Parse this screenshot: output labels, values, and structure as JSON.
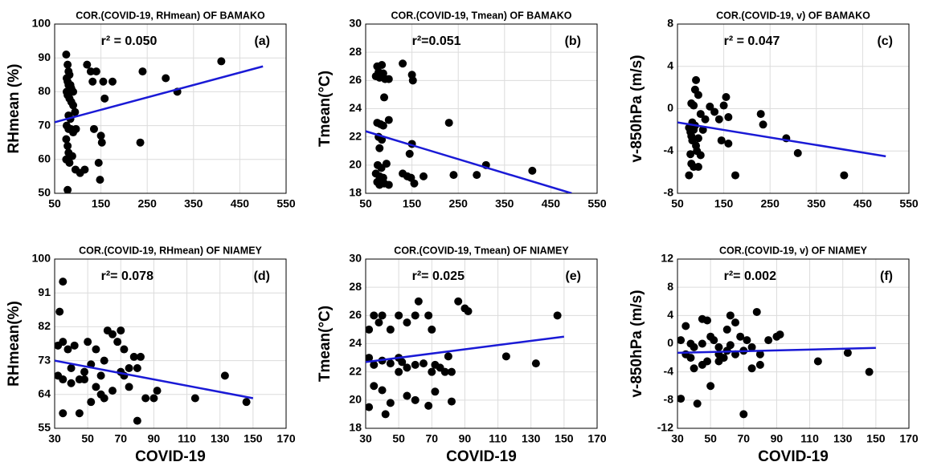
{
  "chart_data": [
    {
      "type": "scatter",
      "title": "COR.(COVID-19, RHmean) OF BAMAKO",
      "annotation": "r² = 0.050",
      "panel_label": "(a)",
      "y_label": "RHmean (%)",
      "x": [
        75,
        78,
        80,
        82,
        76,
        78,
        80,
        84,
        86,
        90,
        76,
        78,
        82,
        86,
        90,
        94,
        80,
        84,
        76,
        80,
        85,
        90,
        96,
        75,
        78,
        80,
        88,
        75,
        82,
        95,
        78,
        105,
        115,
        120,
        128,
        132,
        135,
        140,
        145,
        148,
        150,
        152,
        155,
        158,
        175,
        235,
        240,
        290,
        315,
        410
      ],
      "values": [
        91,
        88,
        86,
        85,
        84,
        83,
        82,
        82,
        81,
        80,
        80,
        79,
        78,
        77,
        76,
        74,
        73,
        72,
        70,
        69,
        69,
        68,
        69,
        66,
        64,
        62,
        61,
        60,
        59,
        57,
        51,
        56,
        57,
        88,
        86,
        83,
        69,
        86,
        59,
        54,
        67,
        65,
        83,
        78,
        83,
        65,
        86,
        84,
        80,
        89
      ],
      "fit_x": [
        50,
        500
      ],
      "fit_y": [
        71,
        87.5
      ],
      "point_color": "#000000",
      "line_color": "#1a1ad6",
      "xlim": [
        50,
        550
      ],
      "xticks": [
        50,
        150,
        250,
        350,
        450,
        550
      ],
      "ylim": [
        50,
        100
      ],
      "yticks": [
        50,
        60,
        70,
        80,
        90,
        100
      ],
      "grid": true
    },
    {
      "type": "scatter",
      "title": "COR.(COVID-19, Tmean) OF BAMAKO",
      "annotation": "r²=0.051",
      "panel_label": "(b)",
      "y_label": "Tmean(°C)",
      "x": [
        72,
        75,
        78,
        80,
        85,
        88,
        92,
        100,
        130,
        150,
        152,
        90,
        75,
        82,
        88,
        100,
        78,
        85,
        80,
        76,
        84,
        95,
        72,
        80,
        88,
        75,
        80,
        90,
        100,
        130,
        140,
        145,
        150,
        148,
        155,
        175,
        230,
        240,
        290,
        310,
        410
      ],
      "values": [
        26.3,
        27,
        26.6,
        26.2,
        27.1,
        26.5,
        26.1,
        26.1,
        27.2,
        26.4,
        26,
        24.8,
        23,
        22.9,
        22.8,
        23.2,
        22,
        21.8,
        21.2,
        20,
        19.8,
        20.1,
        19.4,
        19.2,
        19.1,
        18.8,
        18.6,
        18.7,
        18.6,
        19.4,
        19.2,
        20.8,
        21.5,
        19.1,
        18.7,
        19.2,
        23,
        19.3,
        19.3,
        20,
        19.6
      ],
      "fit_x": [
        50,
        495
      ],
      "fit_y": [
        22.4,
        18
      ],
      "point_color": "#000000",
      "line_color": "#1a1ad6",
      "xlim": [
        50,
        550
      ],
      "xticks": [
        50,
        150,
        250,
        350,
        450,
        550
      ],
      "ylim": [
        18,
        30
      ],
      "yticks": [
        18,
        20,
        22,
        24,
        26,
        28,
        30
      ],
      "grid": true
    },
    {
      "type": "scatter",
      "title": "COR.(COVID-19, v) OF BAMAKO",
      "annotation": "r² = 0.047",
      "panel_label": "(c)",
      "y_label": "v-850hPa (m/s)",
      "x": [
        75,
        78,
        80,
        82,
        85,
        88,
        90,
        92,
        78,
        80,
        75,
        85,
        95,
        80,
        85,
        88,
        90,
        95,
        100,
        105,
        110,
        120,
        130,
        140,
        150,
        155,
        160,
        145,
        160,
        175,
        230,
        235,
        285,
        310,
        410,
        100,
        95,
        82
      ],
      "values": [
        -1.8,
        -2.2,
        -2.6,
        -3,
        -2,
        -1.6,
        -3.5,
        -4,
        -4.3,
        -5.2,
        -6.3,
        -5.5,
        -5.5,
        0.5,
        0.3,
        1.8,
        2.7,
        1.3,
        -0.5,
        -2,
        -1,
        0.2,
        -0.3,
        -1,
        0.3,
        1.1,
        -0.8,
        -3,
        -3.3,
        -6.3,
        -0.5,
        -1.5,
        -2.8,
        -4.2,
        -6.3,
        -4.4,
        -2.8,
        -1.3
      ],
      "fit_x": [
        50,
        500
      ],
      "fit_y": [
        -1.3,
        -4.5
      ],
      "point_color": "#000000",
      "line_color": "#1a1ad6",
      "xlim": [
        50,
        550
      ],
      "xticks": [
        50,
        150,
        250,
        350,
        450,
        550
      ],
      "ylim": [
        -8,
        8
      ],
      "yticks": [
        -8,
        -4,
        0,
        4,
        8
      ],
      "grid": true
    },
    {
      "type": "scatter",
      "title": "COR.(COVID-19, RHmean) OF NIAMEY",
      "annotation": "r²= 0.078",
      "panel_label": "(d)",
      "y_label": "RHmean(%)",
      "x_label": "COVID-19",
      "x": [
        33,
        35,
        32,
        35,
        38,
        32,
        35,
        40,
        42,
        45,
        48,
        50,
        52,
        55,
        58,
        60,
        62,
        65,
        68,
        70,
        72,
        75,
        78,
        80,
        82,
        35,
        45,
        52,
        55,
        58,
        60,
        65,
        70,
        72,
        75,
        80,
        85,
        90,
        92,
        115,
        133,
        146,
        40,
        48
      ],
      "values": [
        86,
        94,
        77,
        78,
        76,
        69,
        68,
        71,
        77,
        68,
        70,
        78,
        72,
        76,
        69,
        73,
        81,
        80,
        78,
        81,
        76,
        71,
        74,
        71,
        74,
        59,
        59,
        62,
        66,
        64,
        63,
        65,
        70,
        69,
        66,
        57,
        63,
        63,
        65,
        63,
        69,
        62,
        67,
        68
      ],
      "fit_x": [
        30,
        150
      ],
      "fit_y": [
        73,
        63
      ],
      "point_color": "#000000",
      "line_color": "#1a1ad6",
      "xlim": [
        30,
        170
      ],
      "xticks": [
        30,
        50,
        70,
        90,
        110,
        130,
        150,
        170
      ],
      "ylim": [
        55,
        100
      ],
      "yticks": [
        55,
        64,
        73,
        82,
        91,
        100
      ],
      "grid": true
    },
    {
      "type": "scatter",
      "title": "COR.(COVID-19, Tmean) OF NIAMEY",
      "annotation": "r²= 0.025",
      "panel_label": "(e)",
      "y_label": "Tmean(°C)",
      "x_label": "COVID-19",
      "x": [
        32,
        35,
        38,
        40,
        45,
        50,
        55,
        60,
        62,
        68,
        70,
        78,
        82,
        86,
        90,
        92,
        32,
        35,
        40,
        45,
        50,
        52,
        55,
        60,
        65,
        70,
        72,
        75,
        80,
        35,
        40,
        45,
        50,
        55,
        60,
        68,
        72,
        82,
        32,
        42,
        115,
        133,
        146
      ],
      "values": [
        25,
        26,
        25.5,
        26,
        25,
        26,
        25.5,
        26,
        27,
        26,
        25,
        22,
        22,
        27,
        26.5,
        26.3,
        23,
        22.5,
        22.8,
        22.6,
        23,
        22.7,
        22.3,
        22.5,
        22.6,
        22,
        22.5,
        22.3,
        23.1,
        21,
        20.7,
        19.8,
        22,
        20.3,
        20,
        19.6,
        20.6,
        19.9,
        19.5,
        19,
        23.1,
        22.6,
        26
      ],
      "fit_x": [
        30,
        150
      ],
      "fit_y": [
        22.7,
        24.5
      ],
      "point_color": "#000000",
      "line_color": "#1a1ad6",
      "xlim": [
        30,
        170
      ],
      "xticks": [
        30,
        50,
        70,
        90,
        110,
        130,
        150,
        170
      ],
      "ylim": [
        18,
        30
      ],
      "yticks": [
        18,
        20,
        22,
        24,
        26,
        28,
        30
      ],
      "grid": true
    },
    {
      "type": "scatter",
      "title": "COR.(COVID-19, v) OF NIAMEY",
      "annotation": "r²= 0.002",
      "panel_label": "(f)",
      "y_label": "v-850hPa (m/s)",
      "x_label": "COVID-19",
      "x": [
        32,
        35,
        38,
        40,
        42,
        45,
        48,
        50,
        52,
        55,
        58,
        60,
        62,
        65,
        68,
        70,
        72,
        75,
        78,
        80,
        85,
        90,
        92,
        32,
        35,
        40,
        45,
        50,
        55,
        60,
        65,
        70,
        75,
        80,
        38,
        45,
        55,
        115,
        133,
        146,
        48,
        62
      ],
      "values": [
        0.5,
        -1.5,
        -2,
        -0.5,
        -8.5,
        -3,
        -2.5,
        1,
        0.5,
        -1.5,
        -2,
        2,
        4,
        3,
        1,
        -10,
        0.5,
        -0.5,
        4.5,
        -3,
        0.5,
        1,
        1.3,
        -7.8,
        2.5,
        -3.5,
        3.5,
        -6,
        -2.5,
        -1,
        -1.5,
        -1,
        -3.5,
        -1.5,
        0,
        0,
        -0.5,
        -2.5,
        -1.3,
        -4,
        3.3,
        -0.2
      ],
      "fit_x": [
        30,
        150
      ],
      "fit_y": [
        -1.3,
        -0.6
      ],
      "point_color": "#000000",
      "line_color": "#1a1ad6",
      "xlim": [
        30,
        170
      ],
      "xticks": [
        30,
        50,
        70,
        90,
        110,
        130,
        150,
        170
      ],
      "ylim": [
        -12,
        12
      ],
      "yticks": [
        -12,
        -8,
        -4,
        0,
        4,
        8,
        12
      ],
      "grid": true
    }
  ]
}
